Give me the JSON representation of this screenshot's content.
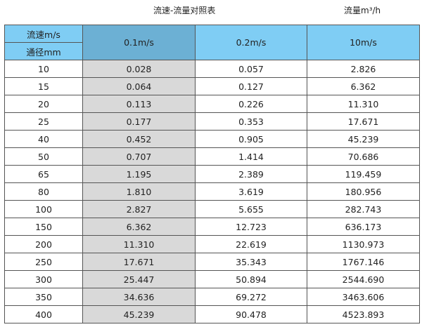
{
  "title": "流速-流量对照表",
  "unit": "流量m³/h",
  "header": {
    "velocity_label": "流速m/s",
    "diameter_label": "通径mm",
    "columns": [
      "0.1m/s",
      "0.2m/s",
      "10m/s"
    ]
  },
  "colors": {
    "header": "#7fcdf4",
    "header_selected": "#6cb0d4",
    "highlight_column": "#d9d9d9"
  },
  "rows": [
    [
      "10",
      "0.028",
      "0.057",
      "2.826"
    ],
    [
      "15",
      "0.064",
      "0.127",
      "6.362"
    ],
    [
      "20",
      "0.113",
      "0.226",
      "11.310"
    ],
    [
      "25",
      "0.177",
      "0.353",
      "17.671"
    ],
    [
      "40",
      "0.452",
      "0.905",
      "45.239"
    ],
    [
      "50",
      "0.707",
      "1.414",
      "70.686"
    ],
    [
      "65",
      "1.195",
      "2.389",
      "119.459"
    ],
    [
      "80",
      "1.810",
      "3.619",
      "180.956"
    ],
    [
      "100",
      "2.827",
      "5.655",
      "282.743"
    ],
    [
      "150",
      "6.362",
      "12.723",
      "636.173"
    ],
    [
      "200",
      "11.310",
      "22.619",
      "1130.973"
    ],
    [
      "250",
      "17.671",
      "35.343",
      "1767.146"
    ],
    [
      "300",
      "25.447",
      "50.894",
      "2544.690"
    ],
    [
      "350",
      "34.636",
      "69.272",
      "3463.606"
    ],
    [
      "400",
      "45.239",
      "90.478",
      "4523.893"
    ]
  ]
}
